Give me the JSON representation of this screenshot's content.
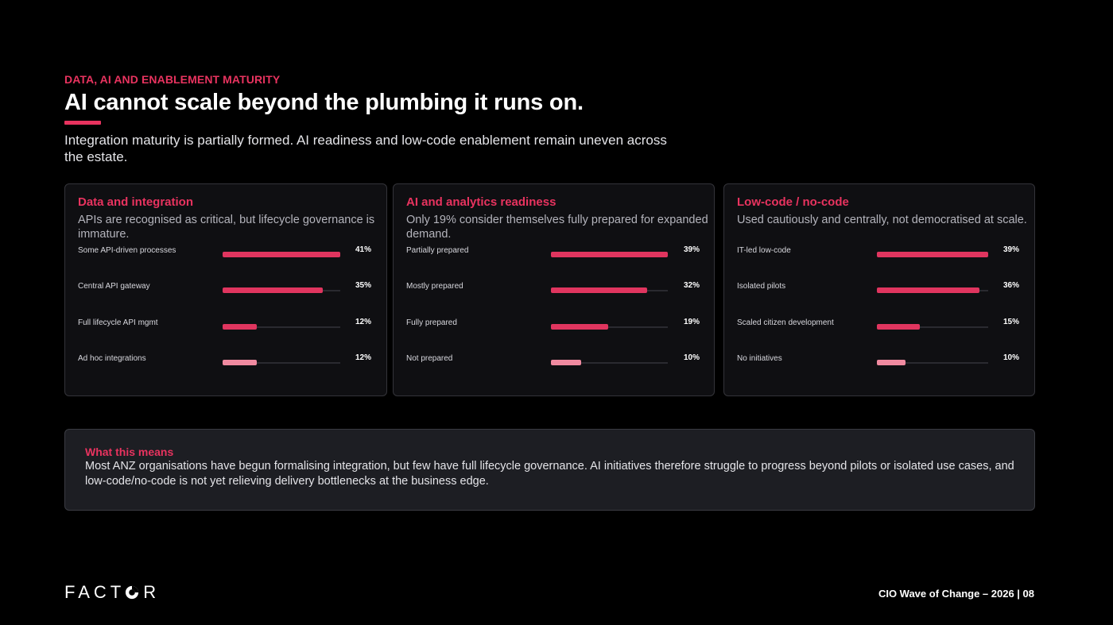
{
  "header": {
    "eyebrow": "DATA, AI AND ENABLEMENT MATURITY",
    "title": "AI cannot scale beyond the plumbing it runs on.",
    "intro": "Integration maturity is partially formed. AI readiness and low-code enablement remain uneven across the estate."
  },
  "colors": {
    "accent": "#e8335f",
    "bar_primary": "#e0355f",
    "bar_light": "#f08aa0"
  },
  "cards": [
    {
      "title": "Data and integration",
      "description": "APIs are recognised as critical, but lifecycle governance is immature."
    },
    {
      "title": "AI and analytics readiness",
      "description": "Only 19% consider themselves fully prepared for expanded demand."
    },
    {
      "title": "Low-code / no-code",
      "description": "Used cautiously and centrally, not democratised at scale."
    }
  ],
  "chart_data": [
    {
      "type": "bar",
      "orientation": "horizontal",
      "title": "Data and integration",
      "categories": [
        "Some API-driven processes",
        "Central API gateway",
        "Full lifecycle API mgmt",
        "Ad hoc integrations"
      ],
      "values": [
        41,
        35,
        12,
        12
      ],
      "labels": [
        "41%",
        "35%",
        "12%",
        "12%"
      ],
      "bar_styles": [
        "primary",
        "primary",
        "primary",
        "light"
      ],
      "xlim": [
        0,
        41
      ]
    },
    {
      "type": "bar",
      "orientation": "horizontal",
      "title": "AI and analytics readiness",
      "categories": [
        "Partially prepared",
        "Mostly prepared",
        "Fully prepared",
        "Not prepared"
      ],
      "values": [
        39,
        32,
        19,
        10
      ],
      "labels": [
        "39%",
        "32%",
        "19%",
        "10%"
      ],
      "bar_styles": [
        "primary",
        "primary",
        "primary",
        "light"
      ],
      "xlim": [
        0,
        39
      ]
    },
    {
      "type": "bar",
      "orientation": "horizontal",
      "title": "Low-code / no-code",
      "categories": [
        "IT-led low-code",
        "Isolated pilots",
        "Scaled citizen development",
        "No initiatives"
      ],
      "values": [
        39,
        36,
        15,
        10
      ],
      "labels": [
        "39%",
        "36%",
        "15%",
        "10%"
      ],
      "bar_styles": [
        "primary",
        "primary",
        "primary",
        "light"
      ],
      "xlim": [
        0,
        39
      ]
    }
  ],
  "means": {
    "title": "What this means",
    "text": "Most ANZ organisations have begun formalising integration, but few have full lifecycle governance. AI initiatives therefore struggle to progress beyond pilots or isolated use cases, and low-code/no-code is not yet relieving delivery bottlenecks at the business edge."
  },
  "footer": {
    "logo_text_left": "FACT",
    "logo_text_right": "R",
    "logo_icon": "factor-o-logo-icon",
    "page_label": "CIO Wave of Change – 2026 | 08"
  }
}
